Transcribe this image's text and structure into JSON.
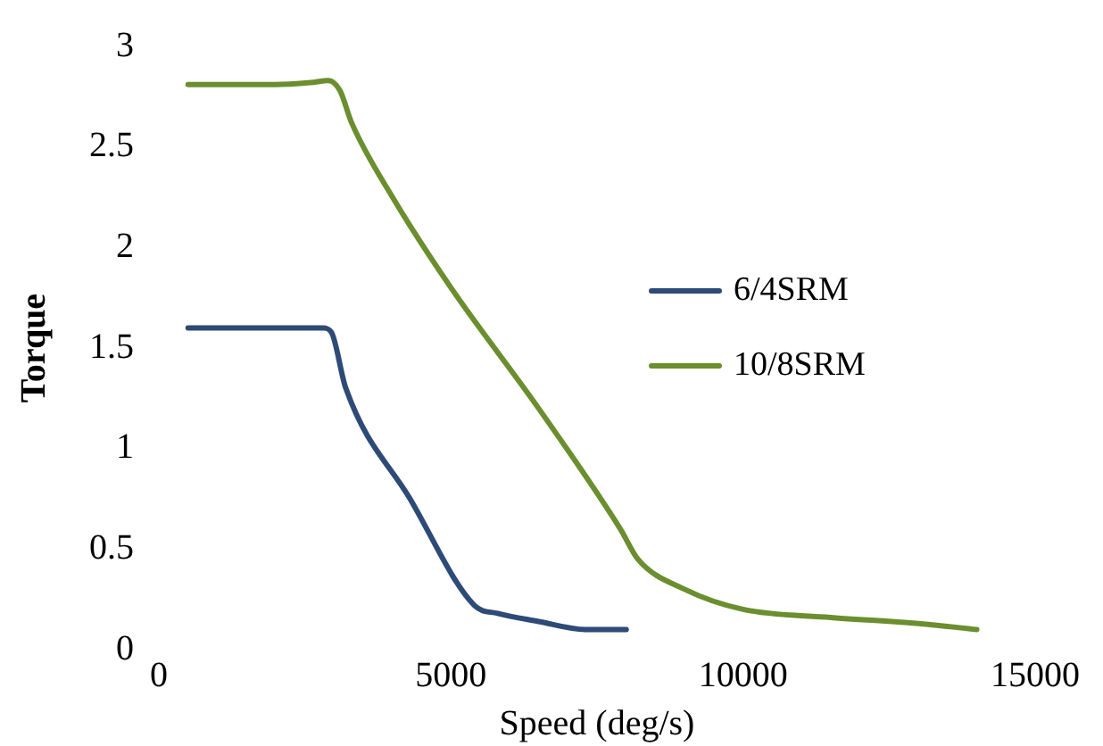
{
  "chart_data": {
    "type": "line",
    "xlabel": "Speed (deg/s)",
    "ylabel": "Torque",
    "xlim": [
      0,
      15000
    ],
    "xticks": [
      0,
      5000,
      10000,
      15000
    ],
    "ylim": [
      0,
      3
    ],
    "yticks": [
      0,
      0.5,
      1,
      1.5,
      2,
      2.5,
      3
    ],
    "grid": false,
    "legend": "right",
    "marker": "none",
    "line_style": "solid",
    "series": [
      {
        "name": "6/4SRM",
        "color": "#2e4a76",
        "x": [
          500,
          2000,
          2800,
          2950,
          3200,
          4300,
          5400,
          5800,
          6500,
          7300,
          8000
        ],
        "values": [
          1.6,
          1.6,
          1.6,
          1.58,
          1.3,
          0.75,
          0.22,
          0.18,
          0.14,
          0.1,
          0.1
        ]
      },
      {
        "name": "10/8SRM",
        "color": "#6b8e2f",
        "x": [
          500,
          2000,
          2600,
          2900,
          3100,
          3300,
          4000,
          5000,
          6500,
          7900,
          8200,
          9000,
          10000,
          11500,
          13000,
          14000
        ],
        "values": [
          2.81,
          2.81,
          2.82,
          2.83,
          2.78,
          2.62,
          2.25,
          1.8,
          1.2,
          0.6,
          0.45,
          0.3,
          0.2,
          0.16,
          0.13,
          0.1
        ]
      }
    ]
  }
}
